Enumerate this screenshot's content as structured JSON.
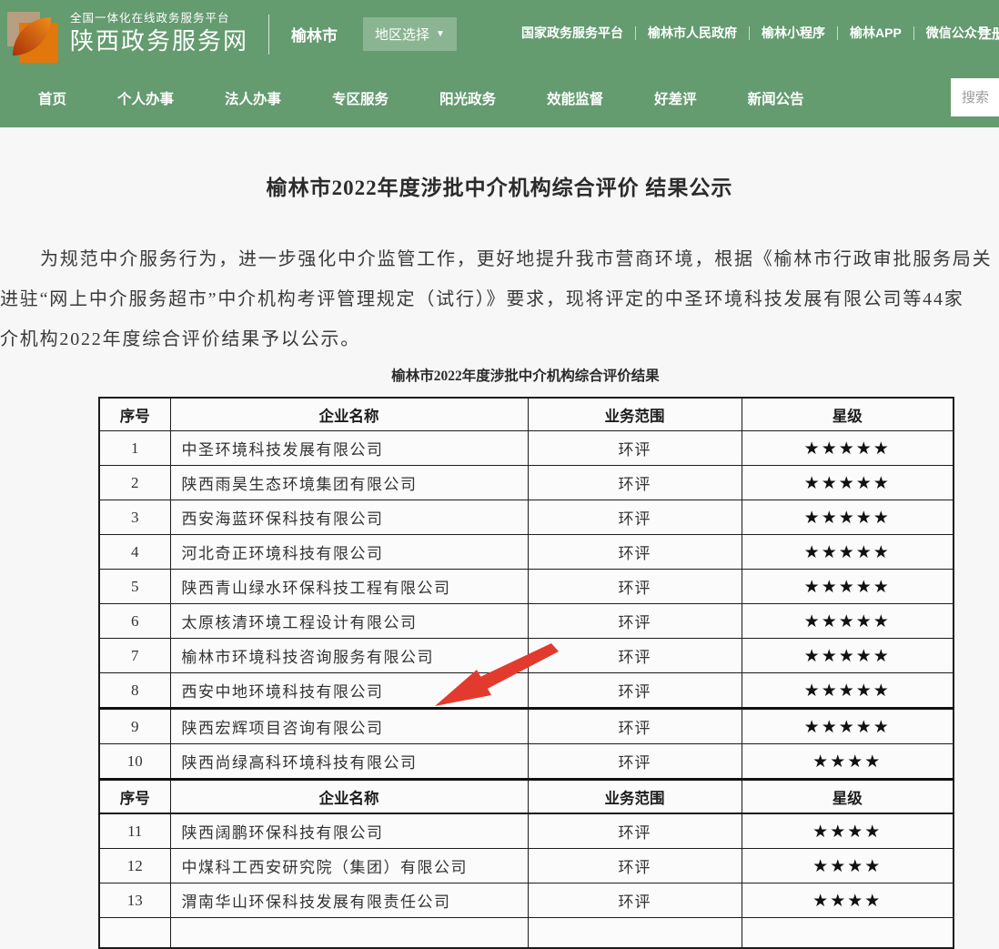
{
  "brand": {
    "platform": "全国一体化在线政务服务平台",
    "site": "陕西政务服务网",
    "city": "榆林市",
    "region_selector": "地区选择",
    "caret": "▼"
  },
  "top_links": [
    "国家政务服务平台",
    "榆林市人民政府",
    "榆林小程序",
    "榆林APP",
    "微信公众号"
  ],
  "register_label": "注册",
  "nav": {
    "items": [
      "首页",
      "个人办事",
      "法人办事",
      "专区服务",
      "阳光政务",
      "效能监督",
      "好差评",
      "新闻公告"
    ],
    "search_placeholder": "搜索"
  },
  "article": {
    "title": "榆林市2022年度涉批中介机构综合评价 结果公示",
    "paragraph_lines": [
      "为规范中介服务行为，进一步强化中介监管工作，更好地提升我市营商环境，根据《榆林市行政审批服务局关",
      "进驻“网上中介服务超市”中介机构考评管理规定（试行）》要求，现将评定的中圣环境科技发展有限公司等44家",
      "介机构2022年度综合评价结果予以公示。"
    ],
    "table_caption": "榆林市2022年度涉批中介机构综合评价结果"
  },
  "table": {
    "headers": [
      "序号",
      "企业名称",
      "业务范围",
      "星级"
    ],
    "sections": [
      {
        "rows": [
          {
            "no": "1",
            "name": "中圣环境科技发展有限公司",
            "scope": "环评",
            "stars": "★★★★★"
          },
          {
            "no": "2",
            "name": "陕西雨昊生态环境集团有限公司",
            "scope": "环评",
            "stars": "★★★★★"
          },
          {
            "no": "3",
            "name": "西安海蓝环保科技有限公司",
            "scope": "环评",
            "stars": "★★★★★"
          },
          {
            "no": "4",
            "name": "河北奇正环境科技有限公司",
            "scope": "环评",
            "stars": "★★★★★"
          },
          {
            "no": "5",
            "name": "陕西青山绿水环保科技工程有限公司",
            "scope": "环评",
            "stars": "★★★★★"
          },
          {
            "no": "6",
            "name": "太原核清环境工程设计有限公司",
            "scope": "环评",
            "stars": "★★★★★"
          },
          {
            "no": "7",
            "name": "榆林市环境科技咨询服务有限公司",
            "scope": "环评",
            "stars": "★★★★★"
          },
          {
            "no": "8",
            "name": "西安中地环境科技有限公司",
            "scope": "环评",
            "stars": "★★★★★"
          },
          {
            "no": "9",
            "name": "陕西宏辉项目咨询有限公司",
            "scope": "环评",
            "stars": "★★★★★",
            "thick_top": true
          },
          {
            "no": "10",
            "name": "陕西尚绿高科环境科技有限公司",
            "scope": "环评",
            "stars": "★★★★"
          }
        ]
      },
      {
        "rows": [
          {
            "no": "11",
            "name": "陕西阔鹏环保科技有限公司",
            "scope": "环评",
            "stars": "★★★★"
          },
          {
            "no": "12",
            "name": "中煤科工西安研究院（集团）有限公司",
            "scope": "环评",
            "stars": "★★★★"
          },
          {
            "no": "13",
            "name": "渭南华山环保科技发展有限责任公司",
            "scope": "环评",
            "stars": "★★★★"
          }
        ]
      }
    ]
  },
  "annotation_arrow": {
    "points_to_row": "4",
    "color": "#e23b2e"
  },
  "colors": {
    "banner_green": "#649b6f",
    "region_button_green": "rgba(255,255,255,0.25)",
    "page_bg": "#f7f7f7",
    "arrow_red": "#e23b2e"
  }
}
